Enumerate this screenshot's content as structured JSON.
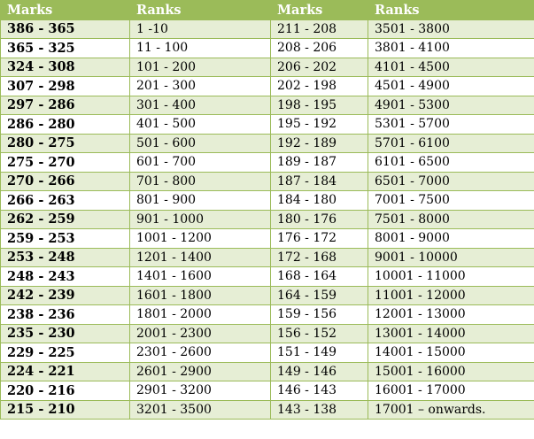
{
  "table": {
    "headers": [
      "Marks",
      "Ranks",
      "Marks",
      "Ranks"
    ],
    "rows": [
      [
        "386 - 365",
        "1 -10",
        "211 - 208",
        "3501 - 3800"
      ],
      [
        "365 - 325",
        "11 - 100",
        "208 - 206",
        "3801 - 4100"
      ],
      [
        "324 - 308",
        "101 - 200",
        "206 - 202",
        "4101 - 4500"
      ],
      [
        "307 - 298",
        "201 - 300",
        "202 - 198",
        "4501 - 4900"
      ],
      [
        "297 - 286",
        "301 - 400",
        "198 - 195",
        "4901 - 5300"
      ],
      [
        "286 - 280",
        "401 - 500",
        "195 - 192",
        "5301 - 5700"
      ],
      [
        "280 - 275",
        "501 - 600",
        "192 - 189",
        "5701 - 6100"
      ],
      [
        "275 - 270",
        "601 - 700",
        "189 - 187",
        "6101 - 6500"
      ],
      [
        "270 - 266",
        "701 - 800",
        "187 - 184",
        "6501 - 7000"
      ],
      [
        "266 - 263",
        "801 - 900",
        "184 - 180",
        "7001 - 7500"
      ],
      [
        "262 - 259",
        "901 - 1000",
        "180 - 176",
        "7501 - 8000"
      ],
      [
        "259 - 253",
        "1001 - 1200",
        "176 - 172",
        "8001 - 9000"
      ],
      [
        "253 - 248",
        "1201 - 1400",
        "172 - 168",
        "9001 - 10000"
      ],
      [
        "248 - 243",
        "1401 - 1600",
        "168 - 164",
        "10001 - 11000"
      ],
      [
        "242 - 239",
        "1601 - 1800",
        "164 - 159",
        "11001 - 12000"
      ],
      [
        "238 - 236",
        "1801 - 2000",
        "159 - 156",
        "12001 - 13000"
      ],
      [
        "235 - 230",
        "2001 - 2300",
        "156 - 152",
        "13001 - 14000"
      ],
      [
        "229 - 225",
        "2301 - 2600",
        "151 - 149",
        "14001 - 15000"
      ],
      [
        "224 - 221",
        "2601 - 2900",
        "149 - 146",
        "15001 - 16000"
      ],
      [
        "220 - 216",
        "2901 - 3200",
        "146 - 143",
        "16001 - 17000"
      ],
      [
        "215 - 210",
        "3201 - 3500",
        "143 - 138",
        "17001 – onwards."
      ]
    ]
  },
  "colors": {
    "header_bg": "#9bbb59",
    "band_light": "#e6eed5",
    "band_white": "#ffffff",
    "border": "#9bbb59"
  }
}
